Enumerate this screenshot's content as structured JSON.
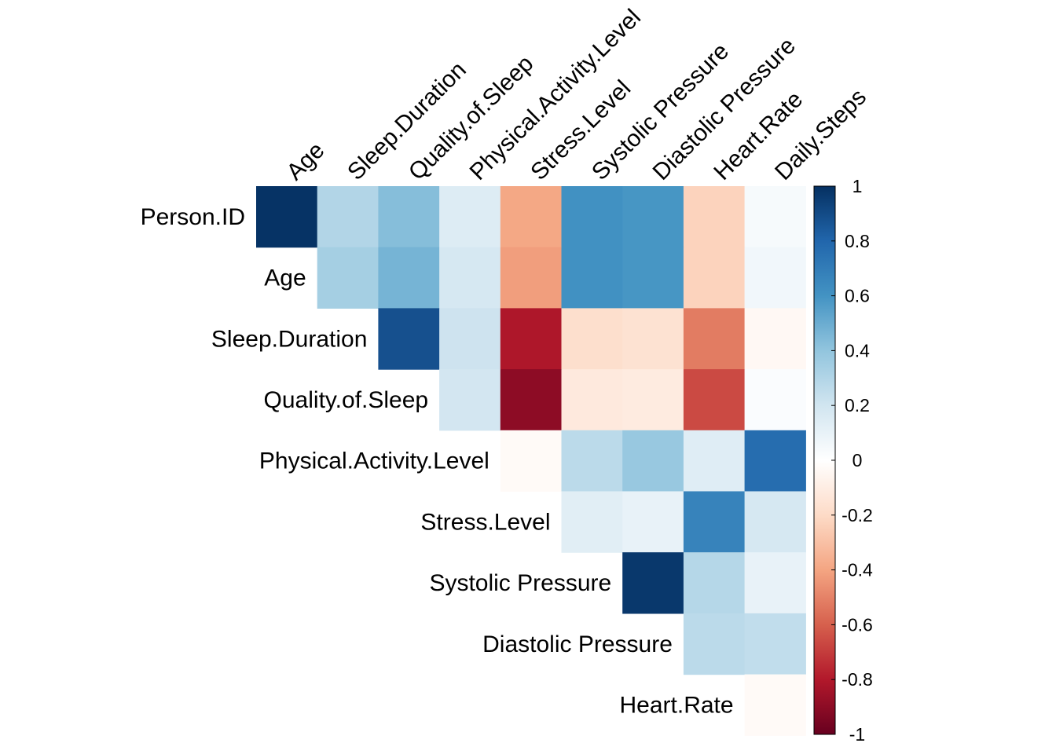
{
  "chart_data": {
    "type": "heatmap",
    "title": "",
    "rows": [
      "Person.ID",
      "Age",
      "Sleep.Duration",
      "Quality.of.Sleep",
      "Physical.Activity.Level",
      "Stress.Level",
      "Systolic Pressure",
      "Diastolic Pressure",
      "Heart.Rate"
    ],
    "columns": [
      "Age",
      "Sleep.Duration",
      "Quality.of.Sleep",
      "Physical.Activity.Level",
      "Stress.Level",
      "Systolic Pressure",
      "Diastolic Pressure",
      "Heart.Rate",
      "Daily.Steps"
    ],
    "layout": "upper-triangle",
    "values": [
      [
        0.99,
        0.3,
        0.43,
        0.15,
        -0.39,
        0.61,
        0.59,
        -0.23,
        0.04
      ],
      [
        null,
        0.34,
        0.47,
        0.18,
        -0.42,
        0.61,
        0.59,
        -0.23,
        0.06
      ],
      [
        null,
        null,
        0.88,
        0.21,
        -0.81,
        -0.18,
        -0.16,
        -0.52,
        -0.04
      ],
      [
        null,
        null,
        null,
        0.19,
        -0.9,
        -0.12,
        -0.11,
        -0.66,
        0.02
      ],
      [
        null,
        null,
        null,
        null,
        -0.03,
        0.27,
        0.38,
        0.14,
        0.77
      ],
      [
        null,
        null,
        null,
        null,
        null,
        0.13,
        0.1,
        0.67,
        0.18
      ],
      [
        null,
        null,
        null,
        null,
        null,
        null,
        0.97,
        0.29,
        0.1
      ],
      [
        null,
        null,
        null,
        null,
        null,
        null,
        null,
        0.27,
        0.25
      ],
      [
        null,
        null,
        null,
        null,
        null,
        null,
        null,
        null,
        -0.03
      ]
    ],
    "colorbar": {
      "ticks": [
        "1",
        "0.8",
        "0.6",
        "0.4",
        "0.2",
        "0",
        "-0.2",
        "-0.4",
        "-0.6",
        "-0.8",
        "-1"
      ],
      "range": [
        -1,
        1
      ],
      "colors": {
        "-1": "#67001f",
        "-0.8": "#b2182b",
        "-0.6": "#d6604d",
        "-0.4": "#f4a582",
        "-0.2": "#fddbc7",
        "0": "#ffffff",
        "0.2": "#d1e5f0",
        "0.4": "#92c5de",
        "0.6": "#4393c3",
        "0.8": "#2166ac",
        "1": "#053061"
      }
    },
    "legend_position": "right"
  }
}
